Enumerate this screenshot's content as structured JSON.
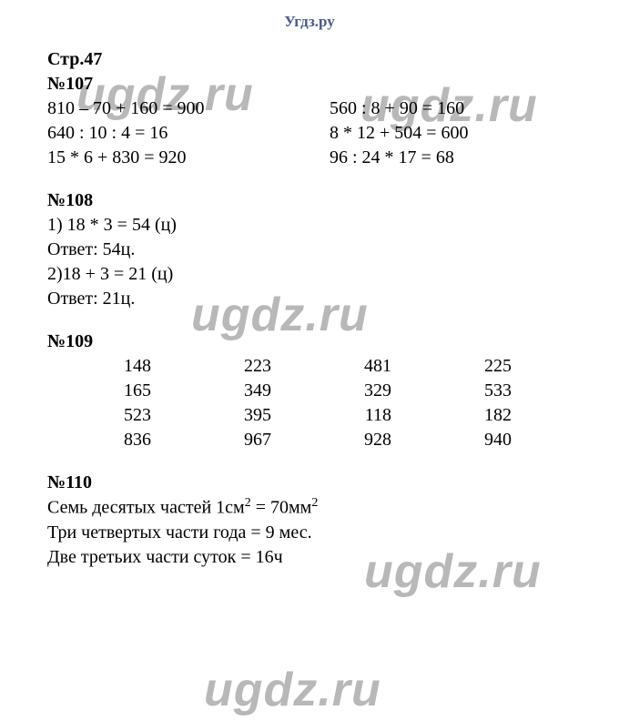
{
  "site": {
    "name": "Угдз.ру"
  },
  "page": {
    "label": "Стр.47"
  },
  "watermark": "ugdz.ru",
  "colors": {
    "header_text": "#4a5a8a",
    "body_text": "#000000",
    "background": "#ffffff",
    "watermark": "rgba(0,0,0,0.28)"
  },
  "typography": {
    "body_font": "Times New Roman",
    "body_size_pt": 15,
    "header_size_pt": 13,
    "watermark_font": "Arial",
    "watermark_size_pt": 39,
    "watermark_weight": "bold",
    "watermark_style": "italic"
  },
  "sections": {
    "n107": {
      "title": "№107",
      "left": [
        "810 – 70 + 160 = 900",
        "640 : 10 : 4 = 16",
        "15 * 6 + 830 = 920"
      ],
      "right": [
        "560 : 8 + 90 = 160",
        "8 * 12 + 504 = 600",
        "96 : 24 * 17 = 68"
      ]
    },
    "n108": {
      "title": "№108",
      "lines": [
        "1) 18 * 3 = 54 (ц)",
        "Ответ: 54ц.",
        "2)18 + 3 = 21 (ц)",
        "Ответ: 21ц."
      ]
    },
    "n109": {
      "title": "№109",
      "type": "table",
      "columns": 4,
      "rows": [
        [
          "148",
          "223",
          "481",
          "225"
        ],
        [
          "165",
          "349",
          "329",
          "533"
        ],
        [
          "523",
          "395",
          "118",
          "182"
        ],
        [
          "836",
          "967",
          "928",
          "940"
        ]
      ],
      "col_align": "right"
    },
    "n110": {
      "title": "№110",
      "lines_raw": [
        "Семь десятых частей 1см² = 70мм²",
        "Три четвертых части года = 9 мес.",
        "Две третьих части суток = 16ч"
      ],
      "line1_a": "Семь десятых частей 1см",
      "line1_b": " = 70мм",
      "sup": "2",
      "line2": "Три четвертых части года = 9 мес.",
      "line3": "Две третьих части суток = 16ч"
    }
  }
}
